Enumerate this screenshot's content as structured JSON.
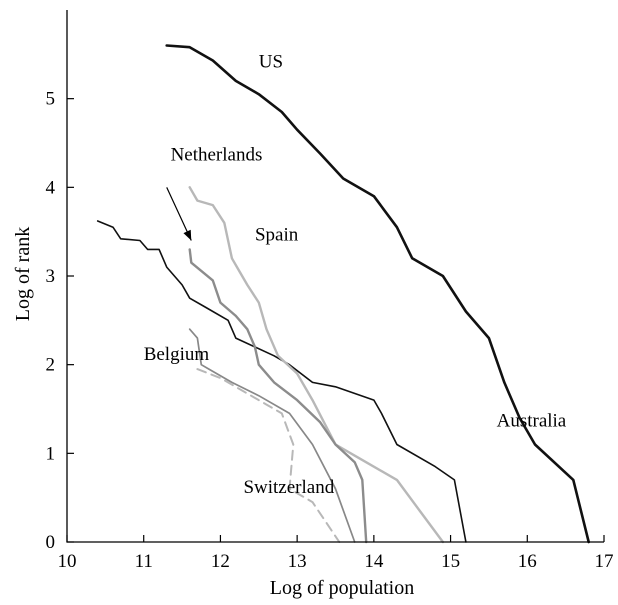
{
  "chart_data": {
    "type": "line",
    "title": "",
    "xlabel": "Log of population",
    "ylabel": "Log of rank",
    "xlim": [
      10,
      17
    ],
    "ylim": [
      0,
      6
    ],
    "xticks": [
      10,
      11,
      12,
      13,
      14,
      15,
      16,
      17
    ],
    "yticks": [
      0,
      1,
      2,
      3,
      4,
      5
    ],
    "grid": false,
    "legend": "none",
    "series": [
      {
        "name": "US",
        "color": "#111111",
        "dash": "solid",
        "width": 2.6,
        "points": [
          [
            11.3,
            5.6
          ],
          [
            11.6,
            5.58
          ],
          [
            11.9,
            5.43
          ],
          [
            12.2,
            5.2
          ],
          [
            12.5,
            5.05
          ],
          [
            12.8,
            4.85
          ],
          [
            13.0,
            4.65
          ],
          [
            13.3,
            4.38
          ],
          [
            13.6,
            4.1
          ],
          [
            14.0,
            3.9
          ],
          [
            14.3,
            3.55
          ],
          [
            14.5,
            3.2
          ],
          [
            14.9,
            3.0
          ],
          [
            15.2,
            2.6
          ],
          [
            15.5,
            2.3
          ],
          [
            15.7,
            1.8
          ],
          [
            15.9,
            1.4
          ],
          [
            16.1,
            1.1
          ],
          [
            16.6,
            0.7
          ],
          [
            16.8,
            0.0
          ]
        ]
      },
      {
        "name": "Australia",
        "color": "#111111",
        "dash": "solid",
        "width": 1.6,
        "points": [
          [
            10.4,
            3.62
          ],
          [
            10.6,
            3.55
          ],
          [
            10.7,
            3.42
          ],
          [
            10.95,
            3.4
          ],
          [
            11.05,
            3.3
          ],
          [
            11.2,
            3.3
          ],
          [
            11.3,
            3.1
          ],
          [
            11.5,
            2.9
          ],
          [
            11.6,
            2.75
          ],
          [
            11.8,
            2.65
          ],
          [
            12.1,
            2.5
          ],
          [
            12.2,
            2.3
          ],
          [
            12.7,
            2.1
          ],
          [
            12.9,
            2.0
          ],
          [
            13.2,
            1.8
          ],
          [
            13.5,
            1.75
          ],
          [
            14.0,
            1.6
          ],
          [
            14.1,
            1.45
          ],
          [
            14.3,
            1.1
          ],
          [
            14.8,
            0.85
          ],
          [
            15.05,
            0.7
          ],
          [
            15.2,
            0.0
          ]
        ]
      },
      {
        "name": "Spain",
        "color": "#b8b8b8",
        "dash": "solid",
        "width": 2.4,
        "points": [
          [
            11.6,
            4.0
          ],
          [
            11.7,
            3.85
          ],
          [
            11.9,
            3.8
          ],
          [
            12.05,
            3.6
          ],
          [
            12.15,
            3.2
          ],
          [
            12.25,
            3.05
          ],
          [
            12.35,
            2.9
          ],
          [
            12.5,
            2.7
          ],
          [
            12.6,
            2.4
          ],
          [
            12.75,
            2.1
          ],
          [
            13.0,
            1.9
          ],
          [
            13.2,
            1.6
          ],
          [
            13.35,
            1.35
          ],
          [
            13.5,
            1.1
          ],
          [
            13.8,
            0.95
          ],
          [
            14.3,
            0.7
          ],
          [
            14.6,
            0.35
          ],
          [
            14.9,
            0.0
          ]
        ]
      },
      {
        "name": "Netherlands",
        "color": "#8c8c8c",
        "dash": "solid",
        "width": 2.4,
        "points": [
          [
            11.6,
            3.3
          ],
          [
            11.62,
            3.15
          ],
          [
            11.9,
            2.95
          ],
          [
            12.0,
            2.7
          ],
          [
            12.2,
            2.55
          ],
          [
            12.35,
            2.4
          ],
          [
            12.45,
            2.2
          ],
          [
            12.5,
            2.0
          ],
          [
            12.7,
            1.8
          ],
          [
            13.0,
            1.6
          ],
          [
            13.3,
            1.35
          ],
          [
            13.5,
            1.1
          ],
          [
            13.75,
            0.9
          ],
          [
            13.85,
            0.7
          ],
          [
            13.9,
            0.0
          ]
        ]
      },
      {
        "name": "Belgium",
        "color": "#888888",
        "dash": "solid",
        "width": 1.7,
        "points": [
          [
            11.6,
            2.4
          ],
          [
            11.7,
            2.3
          ],
          [
            11.75,
            2.0
          ],
          [
            11.85,
            1.95
          ],
          [
            12.15,
            1.8
          ],
          [
            12.5,
            1.65
          ],
          [
            12.9,
            1.45
          ],
          [
            13.2,
            1.1
          ],
          [
            13.5,
            0.6
          ],
          [
            13.75,
            0.0
          ]
        ]
      },
      {
        "name": "Switzerland",
        "color": "#b8b8b8",
        "dash": "dashed",
        "width": 2.0,
        "points": [
          [
            11.7,
            1.95
          ],
          [
            12.0,
            1.85
          ],
          [
            12.3,
            1.7
          ],
          [
            12.6,
            1.55
          ],
          [
            12.8,
            1.45
          ],
          [
            12.95,
            1.1
          ],
          [
            12.9,
            0.6
          ],
          [
            13.2,
            0.45
          ],
          [
            13.55,
            0.0
          ]
        ]
      }
    ],
    "annotations": [
      {
        "text": "US",
        "x": 12.5,
        "y": 5.35
      },
      {
        "text": "Netherlands",
        "x": 11.35,
        "y": 4.3
      },
      {
        "text": "Spain",
        "x": 12.45,
        "y": 3.4
      },
      {
        "text": "Belgium",
        "x": 11.0,
        "y": 2.05
      },
      {
        "text": "Australia",
        "x": 15.6,
        "y": 1.3
      },
      {
        "text": "Switzerland",
        "x": 12.3,
        "y": 0.55
      }
    ],
    "arrow": {
      "from": [
        11.3,
        4.0
      ],
      "to": [
        11.62,
        3.4
      ]
    }
  }
}
